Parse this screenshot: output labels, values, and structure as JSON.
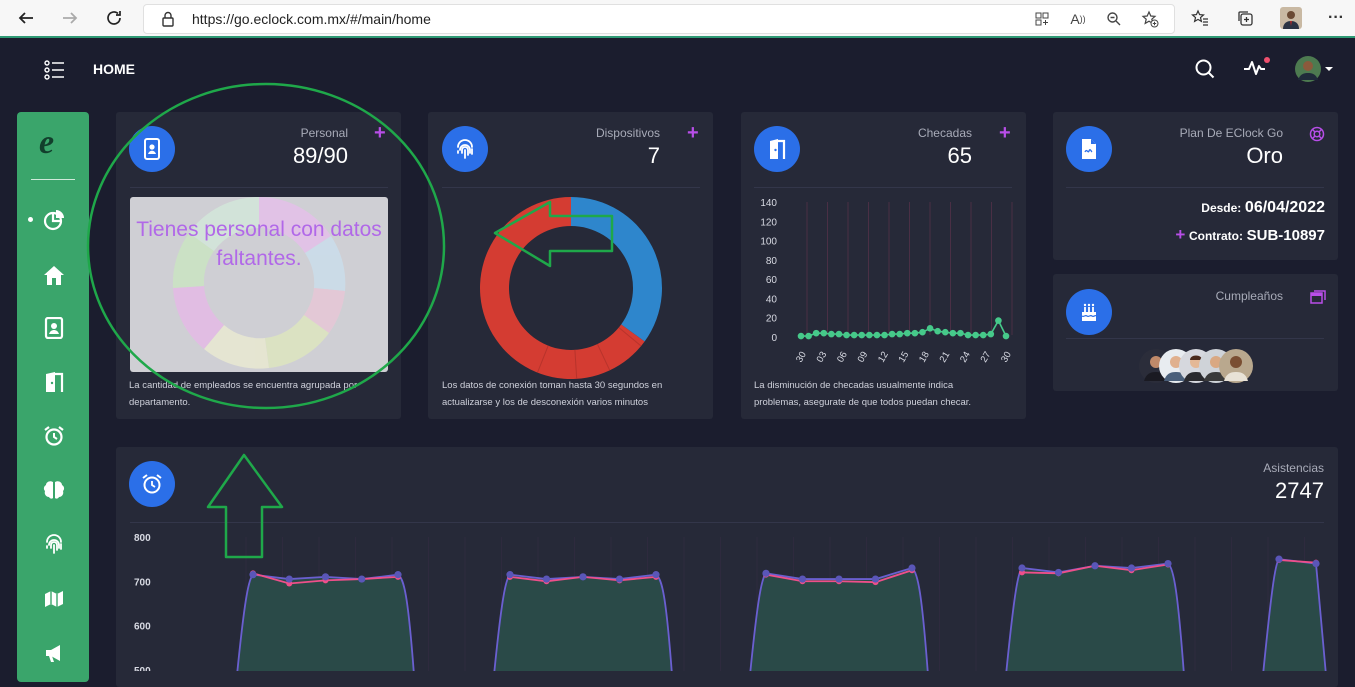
{
  "browser": {
    "url": "https://go.eclock.com.mx/#/main/home"
  },
  "header": {
    "title": "HOME"
  },
  "cards": {
    "personal": {
      "label": "Personal",
      "value": "89/90",
      "overlay_message": "Tienes personal con datos faltantes.",
      "footer": "La cantidad de empleados se encuentra agrupada por departamento."
    },
    "dispositivos": {
      "label": "Dispositivos",
      "value": "7",
      "footer_line1": "Los datos de conexión toman hasta 30 segundos en",
      "footer_line2": "actualizarse y los de desconexión varios minutos"
    },
    "checadas": {
      "label": "Checadas",
      "value": "65",
      "footer_line1": "La disminución de checadas usualmente indica",
      "footer_line2": "problemas, asegurate de que todos puedan checar."
    },
    "plan": {
      "label": "Plan De EClock Go",
      "value": "Oro",
      "desde_label": "Desde:",
      "desde_value": "06/04/2022",
      "contrato_label": "Contrato:",
      "contrato_value": "SUB-10897"
    },
    "cumpleanos": {
      "label": "Cumpleaños",
      "avatar_count": 5
    },
    "asistencias": {
      "label": "Asistencias",
      "value": "2747"
    }
  },
  "colors": {
    "accent_blue": "#2b6fe8",
    "sidebar_green": "#3aa56b",
    "plus_purple": "#b84ee8",
    "chart_green": "#46c98a",
    "donut_red": "#d43c32",
    "donut_blue": "#2e86cc",
    "annotation_green": "#1fa84a"
  },
  "chart_data": [
    {
      "type": "pie",
      "title": "Dispositivos",
      "values": [
        65,
        35
      ],
      "colors": [
        "#d43c32",
        "#2e86cc"
      ]
    },
    {
      "type": "line",
      "title": "Checadas",
      "ylim": [
        0,
        140
      ],
      "yticks": [
        0,
        20,
        40,
        60,
        80,
        100,
        120,
        140
      ],
      "x_tick_labels": [
        "30",
        "03",
        "06",
        "09",
        "12",
        "15",
        "18",
        "21",
        "24",
        "27",
        "30"
      ],
      "values": [
        1,
        1,
        4,
        4,
        3,
        3,
        2,
        2,
        2,
        2,
        2,
        2,
        3,
        3,
        4,
        4,
        5,
        9,
        6,
        5,
        4,
        4,
        2,
        2,
        2,
        3,
        17,
        1
      ]
    },
    {
      "type": "area",
      "title": "Asistencias",
      "ylim": [
        450,
        800
      ],
      "yticks": [
        800,
        700,
        600,
        500
      ],
      "series": [
        {
          "values": [
            [
              715,
              705,
              710,
              705,
              715
            ],
            [
              715,
              705,
              710,
              705,
              715
            ],
            [
              718,
              705,
              705,
              705,
              730
            ],
            [
              730,
              720,
              735,
              730,
              740
            ],
            [
              750,
              740
            ]
          ]
        },
        {
          "values": [
            [
              718,
              695,
              702,
              705,
              710
            ],
            [
              710,
              700,
              710,
              702,
              710
            ],
            [
              715,
              700,
              700,
              698,
              725
            ],
            [
              720,
              718,
              735,
              725,
              738
            ],
            [
              748,
              742
            ]
          ]
        }
      ]
    }
  ]
}
